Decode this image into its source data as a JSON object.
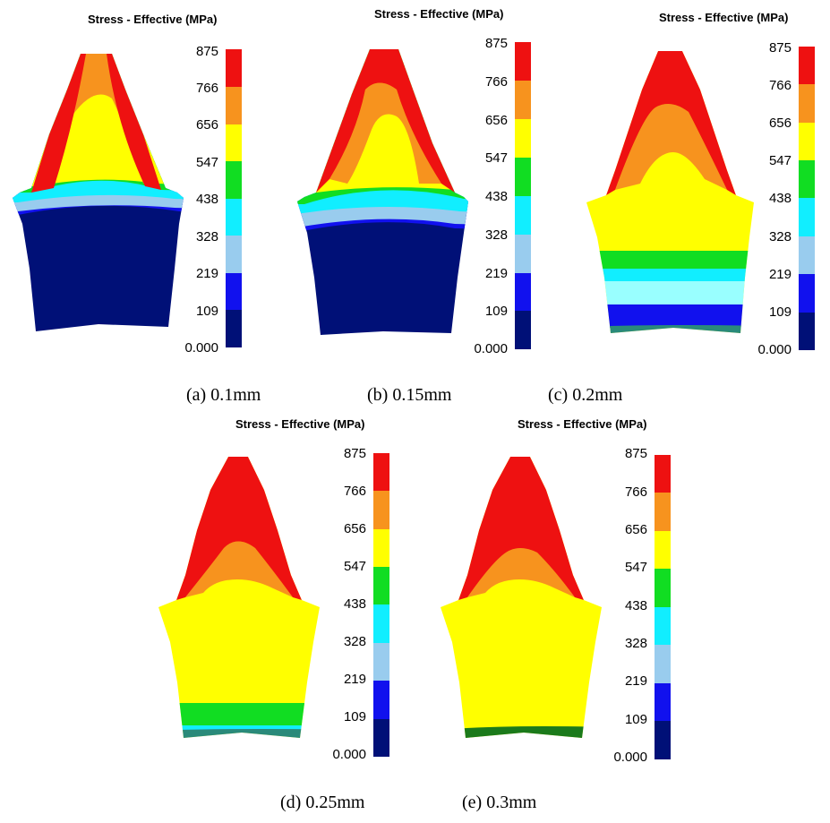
{
  "colorbar": {
    "title": "Stress - Effective (MPa)",
    "ticks": [
      "875",
      "766",
      "656",
      "547",
      "438",
      "328",
      "219",
      "109",
      "0.000"
    ],
    "colors": [
      "#ee1111",
      "#f7931e",
      "#ffff00",
      "#11dd22",
      "#11eeff",
      "#99ccee",
      "#1111ee",
      "#001077"
    ]
  },
  "panels": [
    {
      "id": "a",
      "caption": "(a) 0.1mm",
      "title": "Stress - Effective (MPa)"
    },
    {
      "id": "b",
      "caption": "(b) 0.15mm",
      "title": "Stress - Effective (MPa)"
    },
    {
      "id": "c",
      "caption": "(c) 0.2mm",
      "title": "Stress - Effective (MPa)"
    },
    {
      "id": "d",
      "caption": "(d) 0.25mm",
      "title": "Stress - Effective (MPa)"
    },
    {
      "id": "e",
      "caption": "(e) 0.3mm",
      "title": "Stress - Effective (MPa)"
    }
  ]
}
